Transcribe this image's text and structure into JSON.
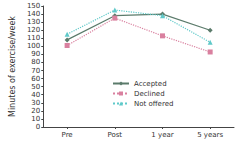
{
  "chart_data": {
    "type": "line",
    "y_label": "Minutes of exercise/week",
    "categories": [
      "Pre",
      "Post",
      "1 year",
      "5 years"
    ],
    "series": [
      {
        "name": "Accepted",
        "color": "#5b7b6b",
        "marker": "diamond",
        "line_style": "solid",
        "values": [
          108,
          138,
          140,
          120
        ]
      },
      {
        "name": "Declined",
        "color": "#d9809f",
        "marker": "square",
        "line_style": "dotted",
        "values": [
          101,
          135,
          113,
          93
        ]
      },
      {
        "name": "Not offered",
        "color": "#5fc9c9",
        "marker": "triangle",
        "line_style": "dotted",
        "values": [
          115,
          145,
          138,
          105
        ]
      }
    ],
    "ylim": [
      0,
      150
    ],
    "yticks": [
      0,
      10,
      20,
      30,
      40,
      50,
      60,
      70,
      80,
      90,
      100,
      110,
      120,
      130,
      140,
      150
    ],
    "grid": false,
    "legend": "center"
  }
}
